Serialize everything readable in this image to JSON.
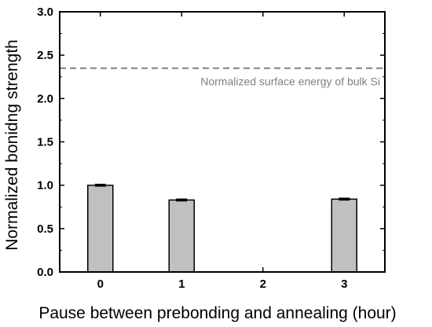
{
  "chart_data": {
    "type": "bar",
    "title": "",
    "xlabel": "Pause between prebonding and annealing (hour)",
    "ylabel": "Normalized bonidng strength",
    "categories": [
      "0",
      "1",
      "2",
      "3"
    ],
    "values": [
      1.0,
      0.83,
      null,
      0.84
    ],
    "error": [
      0.01,
      0.01,
      null,
      0.01
    ],
    "ylim": [
      0,
      3.0
    ],
    "yticks": [
      "0.0",
      "0.5",
      "1.0",
      "1.5",
      "2.0",
      "2.5",
      "3.0"
    ],
    "grid": false,
    "bar_color": "#c0c0c0",
    "reference_line": {
      "value": 2.35,
      "label": "Normalized surface energy of bulk Si",
      "color": "#808080",
      "style": "dashed"
    }
  }
}
